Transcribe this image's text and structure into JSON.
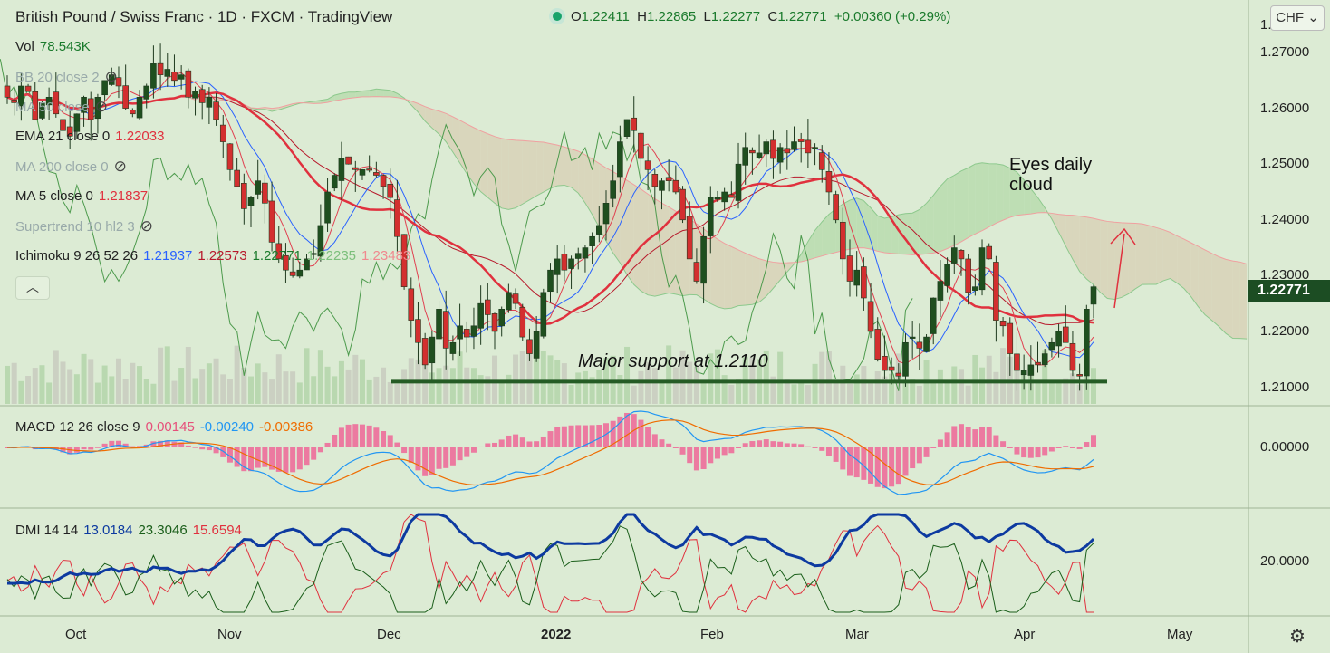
{
  "header": {
    "title": "British Pound / Swiss Franc · 1D · FXCM · TradingView"
  },
  "ohlc": {
    "o_label": "O",
    "o": "1.22411",
    "h_label": "H",
    "h": "1.22865",
    "l_label": "L",
    "l": "1.22277",
    "c_label": "C",
    "c": "1.22771",
    "change": "+0.00360 (+0.29%)"
  },
  "currency_button": {
    "label": "CHF"
  },
  "indicators": [
    {
      "name": "Vol",
      "values": [
        {
          "text": "78.543K",
          "color": "#1a7a2c"
        }
      ],
      "hidden": false
    },
    {
      "name": "BB 20 close 2",
      "values": [],
      "hidden": true
    },
    {
      "name": "MA 50 close",
      "values": [],
      "hidden": true
    },
    {
      "name": "EMA 21 close 0",
      "values": [
        {
          "text": "1.22033",
          "color": "#e0313e"
        }
      ],
      "hidden": false
    },
    {
      "name": "MA 200 close 0",
      "values": [],
      "hidden": true
    },
    {
      "name": "MA 5 close 0",
      "values": [
        {
          "text": "1.21837",
          "color": "#e0313e"
        }
      ],
      "hidden": false
    },
    {
      "name": "Supertrend 10 hl2 3",
      "values": [],
      "hidden": true
    },
    {
      "name": "Ichimoku 9 26 52 26",
      "values": [
        {
          "text": "1.21937",
          "color": "#2962ff"
        },
        {
          "text": "1.22573",
          "color": "#b7192b"
        },
        {
          "text": "1.22771",
          "color": "#1a7a2c"
        },
        {
          "text": "1.22235",
          "color": "#7bbf7b"
        },
        {
          "text": "1.23483",
          "color": "#f0898f"
        }
      ],
      "hidden": false
    }
  ],
  "macd": {
    "name": "MACD 12 26 close 9",
    "values": [
      {
        "text": "0.00145",
        "color": "#e6507a"
      },
      {
        "text": "-0.00240",
        "color": "#2196f3"
      },
      {
        "text": "-0.00386",
        "color": "#ef6c00"
      }
    ]
  },
  "dmi": {
    "name": "DMI 14 14",
    "values": [
      {
        "text": "13.0184",
        "color": "#0d3aa0"
      },
      {
        "text": "23.3046",
        "color": "#1a5e1a"
      },
      {
        "text": "15.6594",
        "color": "#e0313e"
      }
    ]
  },
  "price_axis": [
    "1.27000",
    "1.26000",
    "1.25000",
    "1.24000",
    "1.23000",
    "1.22000",
    "1.21000"
  ],
  "price_axis_top": "1.",
  "current_price": "1.22771",
  "macd_axis": "0.00000",
  "dmi_axis": "20.0000",
  "time_axis": [
    "Oct",
    "Nov",
    "Dec",
    "2022",
    "Feb",
    "Mar",
    "Apr",
    "May"
  ],
  "annotations": {
    "cloud_note_line1": "Eyes daily",
    "cloud_note_line2": "cloud",
    "support_note": "Major support at 1.2110"
  },
  "colors": {
    "bull": "#1f4f1f",
    "bear": "#d32f2f",
    "background": "#dcebd4",
    "support_line": "#255c25"
  },
  "chart_data": {
    "type": "candlestick",
    "title": "British Pound / Swiss Franc · 1D · FXCM",
    "support_level": 1.211,
    "ylim": [
      1.207,
      1.2765
    ],
    "last": {
      "open": 1.22411,
      "high": 1.22865,
      "low": 1.22277,
      "close": 1.22771
    },
    "closes": [
      1.262,
      1.261,
      1.264,
      1.263,
      1.258,
      1.261,
      1.262,
      1.259,
      1.256,
      1.255,
      1.259,
      1.262,
      1.258,
      1.262,
      1.265,
      1.266,
      1.264,
      1.26,
      1.259,
      1.262,
      1.264,
      1.268,
      1.266,
      1.267,
      1.265,
      1.266,
      1.262,
      1.263,
      1.261,
      1.262,
      1.258,
      1.254,
      1.249,
      1.246,
      1.242,
      1.244,
      1.247,
      1.243,
      1.236,
      1.233,
      1.231,
      1.23,
      1.231,
      1.233,
      1.234,
      1.239,
      1.245,
      1.248,
      1.251,
      1.25,
      1.249,
      1.249,
      1.249,
      1.248,
      1.246,
      1.244,
      1.237,
      1.228,
      1.222,
      1.218,
      1.214,
      1.219,
      1.224,
      1.217,
      1.218,
      1.221,
      1.219,
      1.221,
      1.225,
      1.223,
      1.22,
      1.224,
      1.227,
      1.225,
      1.219,
      1.216,
      1.22,
      1.227,
      1.231,
      1.233,
      1.231,
      1.233,
      1.234,
      1.235,
      1.237,
      1.239,
      1.243,
      1.247,
      1.254,
      1.258,
      1.256,
      1.251,
      1.249,
      1.246,
      1.247,
      1.247,
      1.245,
      1.24,
      1.233,
      1.229,
      1.237,
      1.244,
      1.244,
      1.245,
      1.244,
      1.25,
      1.253,
      1.252,
      1.252,
      1.254,
      1.251,
      1.253,
      1.252,
      1.254,
      1.254,
      1.252,
      1.253,
      1.249,
      1.245,
      1.24,
      1.233,
      1.229,
      1.231,
      1.226,
      1.22,
      1.215,
      1.213,
      1.213,
      1.212,
      1.218,
      1.219,
      1.217,
      1.219,
      1.226,
      1.229,
      1.232,
      1.235,
      1.233,
      1.227,
      1.228,
      1.235,
      1.233,
      1.222,
      1.221,
      1.216,
      1.213,
      1.213,
      1.214,
      1.214,
      1.216,
      1.218,
      1.22,
      1.218,
      1.213,
      1.212,
      1.224,
      1.228
    ],
    "volume_max": "78.543K"
  }
}
